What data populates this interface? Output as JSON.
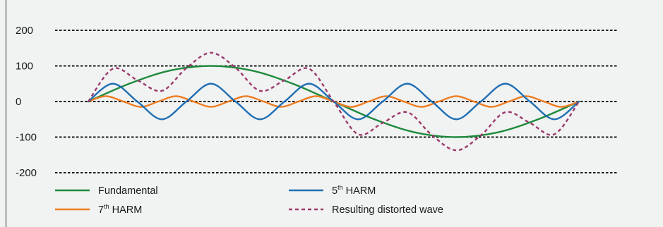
{
  "chart_data": {
    "type": "line",
    "title": "",
    "xlabel": "",
    "ylabel": "",
    "ylim": [
      -200,
      200
    ],
    "yticks": [
      200,
      100,
      0,
      -100,
      -200
    ],
    "grid": true,
    "grid_style": "dashed",
    "x_unit": "degrees",
    "xlim": [
      0,
      360
    ],
    "series": [
      {
        "name": "Fundamental",
        "color": "#1e8a3c",
        "dashed": false,
        "x": [
          0,
          30,
          60,
          90,
          120,
          150,
          180,
          210,
          240,
          270,
          300,
          330,
          360
        ],
        "y": [
          0,
          50,
          87,
          100,
          87,
          50,
          0,
          -50,
          -87,
          -100,
          -87,
          -50,
          0
        ]
      },
      {
        "name": "5th HARM",
        "name_base": "5",
        "name_sup": "th",
        "name_rest": " HARM",
        "color": "#1f6fb4",
        "dashed": false,
        "x": [
          0,
          18,
          36,
          54,
          72,
          90,
          108,
          126,
          144,
          162,
          180,
          198,
          216,
          234,
          252,
          270,
          288,
          306,
          324,
          342,
          360
        ],
        "y": [
          0,
          50,
          0,
          -50,
          0,
          50,
          0,
          -50,
          0,
          50,
          0,
          -50,
          0,
          50,
          0,
          -50,
          0,
          50,
          0,
          -50,
          0
        ]
      },
      {
        "name": "7th HARM",
        "name_base": "7",
        "name_sup": "th",
        "name_rest": " HARM",
        "color": "#ee7d22",
        "dashed": false,
        "x": [
          0,
          12.9,
          25.7,
          38.6,
          51.4,
          64.3,
          77.1,
          90,
          102.9,
          115.7,
          128.6,
          141.4,
          154.3,
          167.1,
          180,
          192.9,
          205.7,
          218.6,
          231.4,
          244.3,
          257.1,
          270,
          282.9,
          295.7,
          308.6,
          321.4,
          334.3,
          347.1,
          360
        ],
        "y": [
          0,
          15,
          0,
          -15,
          0,
          15,
          0,
          -15,
          0,
          15,
          0,
          -15,
          0,
          15,
          0,
          -15,
          0,
          15,
          0,
          -15,
          0,
          15,
          0,
          -15,
          0,
          15,
          0,
          -15,
          0
        ]
      },
      {
        "name": "Resulting distorted wave",
        "color": "#9c3a6b",
        "dashed": true,
        "x": [
          0,
          18,
          36,
          54,
          72,
          90,
          108,
          126,
          144,
          162,
          180,
          198,
          216,
          234,
          252,
          270,
          288,
          306,
          324,
          342,
          360
        ],
        "y": [
          0,
          92,
          60,
          30,
          94,
          137,
          95,
          30,
          60,
          92,
          0,
          -92,
          -60,
          -30,
          -94,
          -137,
          -95,
          -30,
          -60,
          -92,
          0
        ]
      }
    ]
  }
}
